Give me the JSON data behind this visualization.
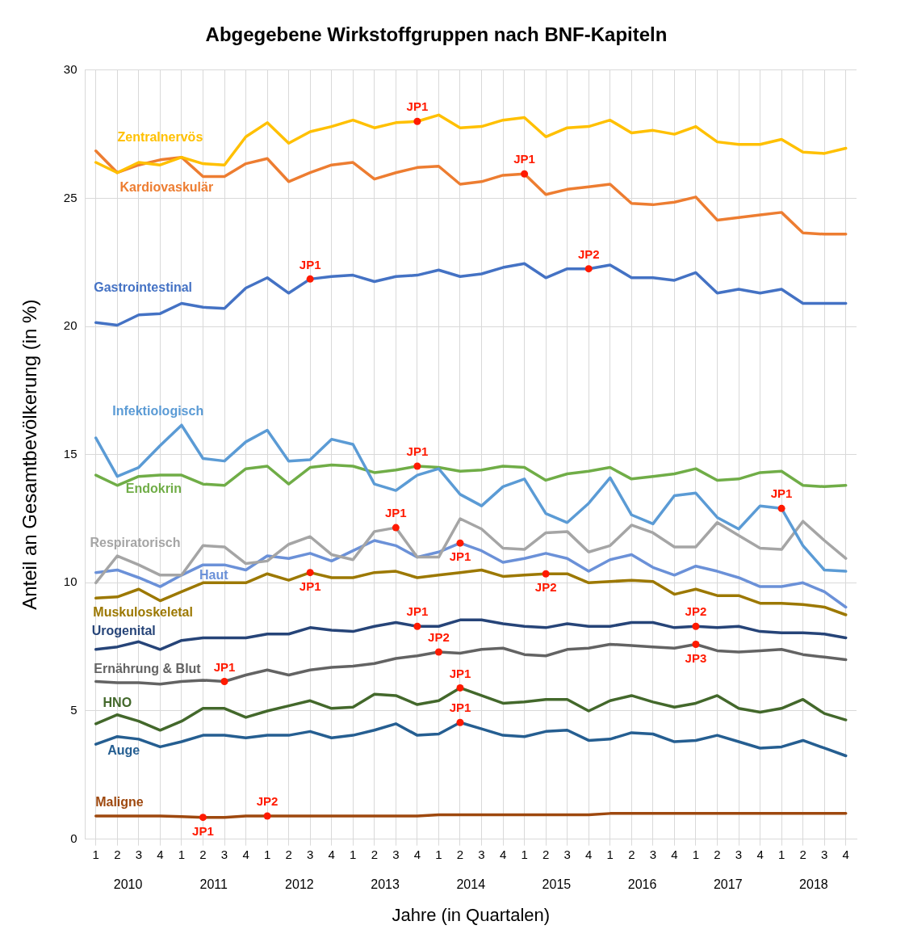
{
  "chart_data": {
    "type": "line",
    "title": "Abgegebene Wirkstoffgruppen nach BNF-Kapiteln",
    "xlabel": "Jahre (in Quartalen)",
    "ylabel": "Anteil an Gesamtbevölkerung (in %)",
    "categories": [
      "1",
      "2",
      "3",
      "4",
      "1",
      "2",
      "3",
      "4",
      "1",
      "2",
      "3",
      "4",
      "1",
      "2",
      "3",
      "4",
      "1",
      "2",
      "3",
      "4",
      "1",
      "2",
      "3",
      "4",
      "1",
      "2",
      "3",
      "4",
      "1",
      "2",
      "3",
      "4",
      "1",
      "2",
      "3",
      "4"
    ],
    "ylim": [
      0,
      30
    ],
    "yticks": [
      0,
      5,
      10,
      15,
      20,
      25,
      30
    ],
    "grid": true,
    "series": [
      {
        "name": "Zentralnervös",
        "color": "#ffc000",
        "values": [
          26.4,
          26.0,
          26.4,
          26.3,
          26.6,
          26.35,
          26.3,
          27.4,
          27.95,
          27.15,
          27.6,
          27.8,
          28.05,
          27.75,
          27.95,
          28.0,
          28.25,
          27.75,
          27.8,
          28.05,
          28.15,
          27.4,
          27.75,
          27.8,
          28.05,
          27.55,
          27.65,
          27.5,
          27.8,
          27.2,
          27.1,
          27.1,
          27.3,
          26.8,
          26.75,
          26.95
        ]
      },
      {
        "name": "Kardiovaskulär",
        "color": "#ed7d31",
        "values": [
          26.85,
          26.0,
          26.3,
          26.5,
          26.6,
          25.85,
          25.85,
          26.35,
          26.55,
          25.65,
          26.0,
          26.3,
          26.4,
          25.75,
          26.0,
          26.2,
          26.25,
          25.55,
          25.65,
          25.9,
          25.95,
          25.15,
          25.35,
          25.45,
          25.55,
          24.8,
          24.75,
          24.85,
          25.05,
          24.15,
          24.25,
          24.35,
          24.45,
          23.65,
          23.6,
          23.6
        ]
      },
      {
        "name": "Gastrointestinal",
        "color": "#4472c4",
        "values": [
          20.15,
          20.05,
          20.45,
          20.5,
          20.9,
          20.75,
          20.7,
          21.5,
          21.9,
          21.3,
          21.85,
          21.95,
          22.0,
          21.75,
          21.95,
          22.0,
          22.2,
          21.95,
          22.05,
          22.3,
          22.45,
          21.9,
          22.25,
          22.25,
          22.4,
          21.9,
          21.9,
          21.8,
          22.1,
          21.3,
          21.45,
          21.3,
          21.45,
          20.9,
          20.9,
          20.9
        ]
      },
      {
        "name": "Infektiologisch",
        "color": "#5b9bd5",
        "values": [
          15.65,
          14.15,
          14.5,
          15.35,
          16.15,
          14.85,
          14.75,
          15.5,
          15.95,
          14.75,
          14.8,
          15.6,
          15.4,
          13.85,
          13.6,
          14.2,
          14.45,
          13.45,
          13.0,
          13.75,
          14.05,
          12.7,
          12.35,
          13.1,
          14.1,
          12.65,
          12.3,
          13.4,
          13.5,
          12.55,
          12.1,
          13.0,
          12.9,
          11.45,
          10.5,
          10.45
        ]
      },
      {
        "name": "Endokrin",
        "color": "#70ad47",
        "values": [
          14.2,
          13.8,
          14.15,
          14.2,
          14.2,
          13.85,
          13.8,
          14.45,
          14.55,
          13.85,
          14.5,
          14.6,
          14.55,
          14.3,
          14.4,
          14.55,
          14.5,
          14.35,
          14.4,
          14.55,
          14.5,
          14.0,
          14.25,
          14.35,
          14.5,
          14.05,
          14.15,
          14.25,
          14.45,
          14.0,
          14.05,
          14.3,
          14.35,
          13.8,
          13.75,
          13.8
        ]
      },
      {
        "name": "Respiratorisch",
        "color": "#a5a5a5",
        "values": [
          10.0,
          11.05,
          10.7,
          10.3,
          10.3,
          11.45,
          11.4,
          10.75,
          10.85,
          11.5,
          11.8,
          11.1,
          10.9,
          12.0,
          12.15,
          11.0,
          11.0,
          12.5,
          12.1,
          11.35,
          11.3,
          11.95,
          12.0,
          11.2,
          11.45,
          12.25,
          11.95,
          11.4,
          11.4,
          12.35,
          11.85,
          11.35,
          11.3,
          12.4,
          11.65,
          10.95
        ]
      },
      {
        "name": "Haut",
        "color": "#6b91d8",
        "values": [
          10.4,
          10.5,
          10.2,
          9.85,
          10.3,
          10.7,
          10.7,
          10.5,
          11.05,
          10.95,
          11.15,
          10.85,
          11.25,
          11.65,
          11.45,
          11.0,
          11.2,
          11.55,
          11.25,
          10.8,
          10.95,
          11.15,
          10.95,
          10.45,
          10.9,
          11.1,
          10.6,
          10.3,
          10.65,
          10.45,
          10.2,
          9.85,
          9.85,
          10.0,
          9.65,
          9.05
        ]
      },
      {
        "name": "Muskuloskeletal",
        "color": "#9c7800",
        "values": [
          9.4,
          9.45,
          9.75,
          9.3,
          9.65,
          10.0,
          10.0,
          10.0,
          10.35,
          10.1,
          10.4,
          10.2,
          10.2,
          10.4,
          10.45,
          10.2,
          10.3,
          10.4,
          10.5,
          10.25,
          10.3,
          10.35,
          10.35,
          10.0,
          10.05,
          10.1,
          10.05,
          9.55,
          9.75,
          9.5,
          9.5,
          9.2,
          9.2,
          9.15,
          9.05,
          8.75
        ]
      },
      {
        "name": "Urogenital",
        "color": "#264478",
        "values": [
          7.4,
          7.5,
          7.7,
          7.4,
          7.75,
          7.85,
          7.85,
          7.85,
          8.0,
          8.0,
          8.25,
          8.15,
          8.1,
          8.3,
          8.45,
          8.3,
          8.3,
          8.55,
          8.55,
          8.4,
          8.3,
          8.25,
          8.4,
          8.3,
          8.3,
          8.45,
          8.45,
          8.25,
          8.3,
          8.25,
          8.3,
          8.1,
          8.05,
          8.05,
          8.0,
          7.85
        ]
      },
      {
        "name": "Ernährung & Blut",
        "color": "#636363",
        "values": [
          6.15,
          6.1,
          6.1,
          6.05,
          6.15,
          6.2,
          6.15,
          6.4,
          6.6,
          6.4,
          6.6,
          6.7,
          6.75,
          6.85,
          7.05,
          7.15,
          7.3,
          7.25,
          7.4,
          7.45,
          7.2,
          7.15,
          7.4,
          7.45,
          7.6,
          7.55,
          7.5,
          7.45,
          7.6,
          7.35,
          7.3,
          7.35,
          7.4,
          7.2,
          7.1,
          7.0
        ]
      },
      {
        "name": "HNO",
        "color": "#43682b",
        "values": [
          4.5,
          4.85,
          4.6,
          4.25,
          4.6,
          5.1,
          5.1,
          4.75,
          5.0,
          5.2,
          5.4,
          5.1,
          5.15,
          5.65,
          5.6,
          5.25,
          5.4,
          5.9,
          5.6,
          5.3,
          5.35,
          5.45,
          5.45,
          5.0,
          5.4,
          5.6,
          5.35,
          5.15,
          5.3,
          5.6,
          5.1,
          4.95,
          5.1,
          5.45,
          4.9,
          4.65
        ]
      },
      {
        "name": "Auge",
        "color": "#255e91",
        "values": [
          3.7,
          4.0,
          3.9,
          3.6,
          3.8,
          4.05,
          4.05,
          3.95,
          4.05,
          4.05,
          4.2,
          3.95,
          4.05,
          4.25,
          4.5,
          4.05,
          4.1,
          4.55,
          4.3,
          4.05,
          4.0,
          4.2,
          4.25,
          3.85,
          3.9,
          4.15,
          4.1,
          3.8,
          3.85,
          4.05,
          3.8,
          3.55,
          3.6,
          3.85,
          3.55,
          3.25
        ]
      },
      {
        "name": "Maligne",
        "color": "#9e480e",
        "values": [
          0.9,
          0.9,
          0.9,
          0.9,
          0.88,
          0.85,
          0.85,
          0.9,
          0.9,
          0.9,
          0.9,
          0.9,
          0.9,
          0.9,
          0.9,
          0.9,
          0.95,
          0.95,
          0.95,
          0.95,
          0.95,
          0.95,
          0.95,
          0.95,
          1.0,
          1.0,
          1.0,
          1.0,
          1.0,
          1.0,
          1.0,
          1.0,
          1.0,
          1.0,
          1.0,
          1.0
        ]
      }
    ],
    "annotations": [
      "2010",
      "2011",
      "2012",
      "2013",
      "2014",
      "2015",
      "2016",
      "2017",
      "2018",
      "JP1",
      "JP1",
      "JP1",
      "JP2",
      "JP1",
      "JP1",
      "JP1",
      "JP1",
      "JP1",
      "JP2",
      "JP1",
      "JP2",
      "JP1",
      "JP2",
      "JP3",
      "JP1",
      "JP1",
      "JP1",
      "JP2"
    ]
  }
}
